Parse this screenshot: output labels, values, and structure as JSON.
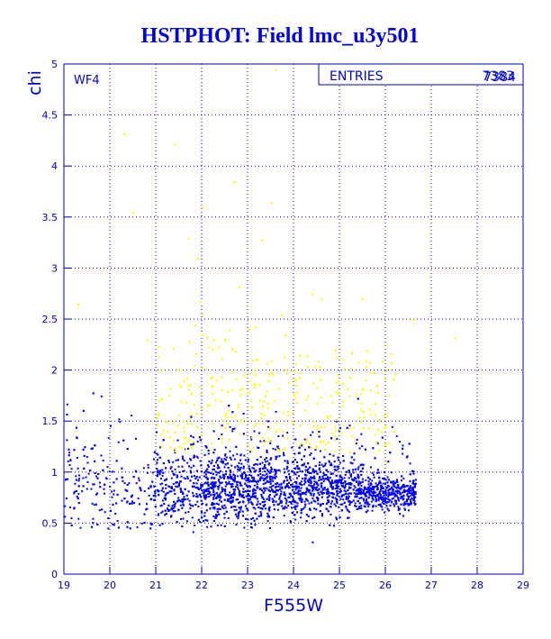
{
  "chart_data": {
    "type": "scatter",
    "title": "HSTPHOT: Field lmc_u3y501",
    "xlabel": "F555W",
    "ylabel": "chi",
    "xlim": [
      19,
      29
    ],
    "ylim": [
      0,
      5
    ],
    "xticks": [
      "19",
      "20",
      "21",
      "22",
      "23",
      "24",
      "25",
      "26",
      "27",
      "28",
      "29"
    ],
    "yticks": [
      "0",
      "0.5",
      "1",
      "1.5",
      "2",
      "2.5",
      "3",
      "3.5",
      "4",
      "4.5",
      "5"
    ],
    "grid": true,
    "panel_label": "WF4",
    "stats": {
      "label": "ENTRIES",
      "values": [
        "7383",
        "7384"
      ]
    },
    "series": [
      {
        "color": "#0000ff",
        "marker": "dot",
        "count": 7383,
        "points": [
          [
            19.1,
            1.2
          ],
          [
            19.2,
            0.8
          ],
          [
            19.3,
            0.55
          ],
          [
            19.4,
            0.95
          ],
          [
            19.5,
            1.1
          ],
          [
            19.6,
            0.7
          ],
          [
            19.8,
            1.75
          ],
          [
            19.9,
            0.95
          ],
          [
            20.1,
            0.6
          ],
          [
            20.2,
            1.5
          ],
          [
            20.4,
            0.9
          ],
          [
            20.6,
            0.75
          ],
          [
            20.8,
            1.0
          ],
          [
            20.9,
            0.5
          ],
          [
            21.0,
            1.4
          ],
          [
            21.2,
            0.85
          ],
          [
            21.4,
            1.2
          ],
          [
            21.6,
            0.95
          ],
          [
            21.8,
            1.35
          ],
          [
            22.0,
            0.7
          ],
          [
            22.2,
            1.1
          ],
          [
            22.4,
            0.9
          ],
          [
            22.6,
            1.45
          ],
          [
            22.8,
            0.8
          ],
          [
            23.0,
            0.95
          ],
          [
            23.2,
            1.25
          ],
          [
            23.4,
            0.85
          ],
          [
            23.6,
            1.6
          ],
          [
            23.8,
            0.75
          ],
          [
            24.0,
            1.0
          ],
          [
            24.2,
            0.65
          ],
          [
            24.4,
            1.4
          ],
          [
            24.6,
            0.9
          ],
          [
            24.8,
            0.7
          ],
          [
            25.0,
            1.1
          ],
          [
            25.2,
            0.8
          ],
          [
            25.4,
            0.95
          ],
          [
            25.6,
            0.7
          ],
          [
            25.8,
            1.0
          ],
          [
            26.0,
            0.75
          ],
          [
            26.2,
            0.9
          ],
          [
            26.4,
            0.65
          ],
          [
            26.6,
            0.8
          ],
          [
            24.4,
            0.32
          ],
          [
            21.8,
            0.42
          ],
          [
            20.0,
            1.46
          ]
        ]
      },
      {
        "color": "#ffff00",
        "marker": "dot",
        "points": [
          [
            19.3,
            2.65
          ],
          [
            20.3,
            4.32
          ],
          [
            20.5,
            3.55
          ],
          [
            21.4,
            4.22
          ],
          [
            22.0,
            3.6
          ],
          [
            22.7,
            3.85
          ],
          [
            23.3,
            3.28
          ],
          [
            23.5,
            3.65
          ],
          [
            23.6,
            4.95
          ],
          [
            24.4,
            2.75
          ],
          [
            24.6,
            2.7
          ],
          [
            22.8,
            2.82
          ],
          [
            21.7,
            3.3
          ],
          [
            21.9,
            3.1
          ],
          [
            22.0,
            2.55
          ],
          [
            22.5,
            2.3
          ],
          [
            22.6,
            2.4
          ],
          [
            23.8,
            2.35
          ],
          [
            24.9,
            2.2
          ],
          [
            25.9,
            1.4
          ],
          [
            26.6,
            2.5
          ],
          [
            27.5,
            2.32
          ],
          [
            21.1,
            2.0
          ],
          [
            21.6,
            1.9
          ],
          [
            22.2,
            1.85
          ],
          [
            22.9,
            1.95
          ],
          [
            23.4,
            1.8
          ],
          [
            24.3,
            1.75
          ],
          [
            25.5,
            1.6
          ],
          [
            26.0,
            1.1
          ],
          [
            26.3,
            0.9
          ],
          [
            20.8,
            2.3
          ],
          [
            24.0,
            2.0
          ],
          [
            22.4,
            1.7
          ],
          [
            23.1,
            2.1
          ]
        ]
      }
    ]
  }
}
